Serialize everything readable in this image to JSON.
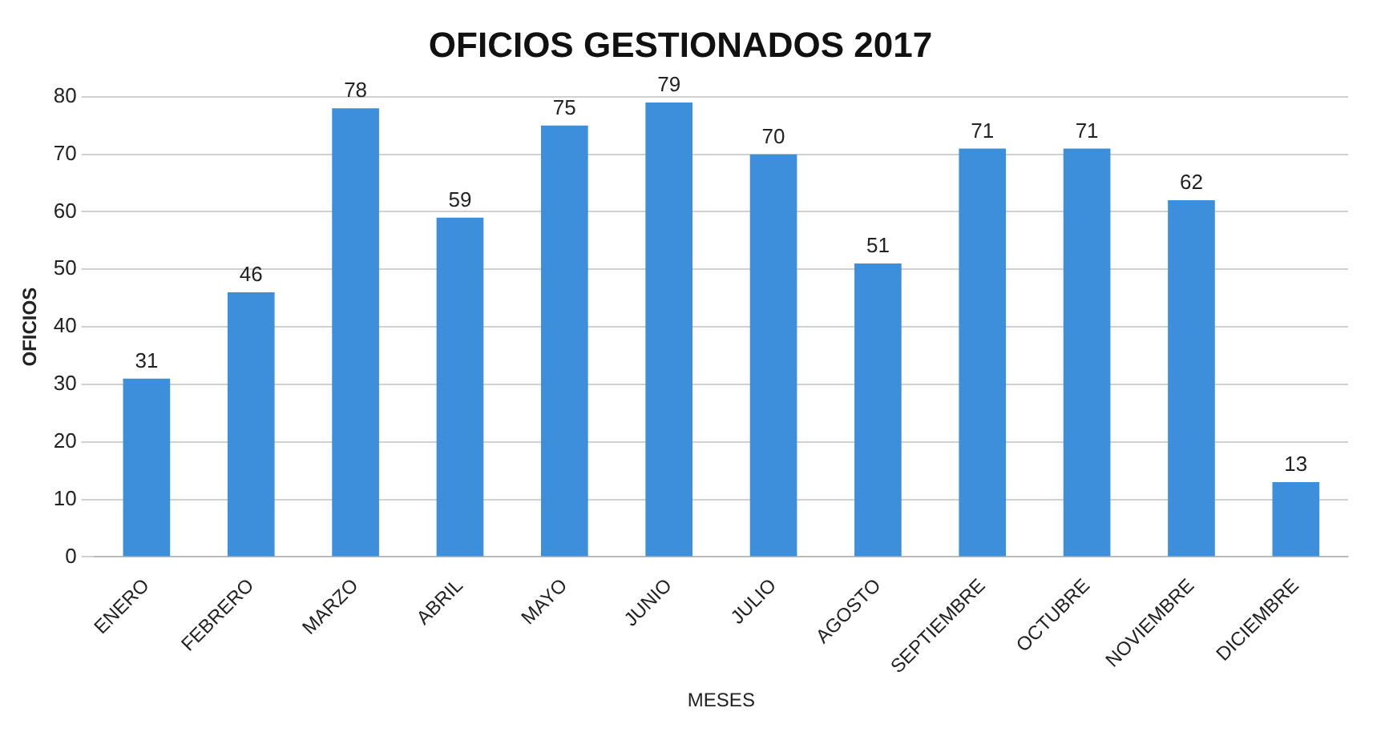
{
  "chart_data": {
    "type": "bar",
    "title": "OFICIOS GESTIONADOS 2017",
    "xlabel": "MESES",
    "ylabel": "OFICIOS",
    "categories": [
      "ENERO",
      "FEBRERO",
      "MARZO",
      "ABRIL",
      "MAYO",
      "JUNIO",
      "JULIO",
      "AGOSTO",
      "SEPTIEMBRE",
      "OCTUBRE",
      "NOVIEMBRE",
      "DICIEMBRE"
    ],
    "values": [
      31,
      46,
      78,
      59,
      75,
      79,
      70,
      51,
      71,
      71,
      62,
      13
    ],
    "color": "#3d8fdb",
    "ylim": [
      0,
      80
    ],
    "yticks": [
      0,
      10,
      20,
      30,
      40,
      50,
      60,
      70,
      80
    ],
    "grid": "y",
    "data_labels": true
  }
}
